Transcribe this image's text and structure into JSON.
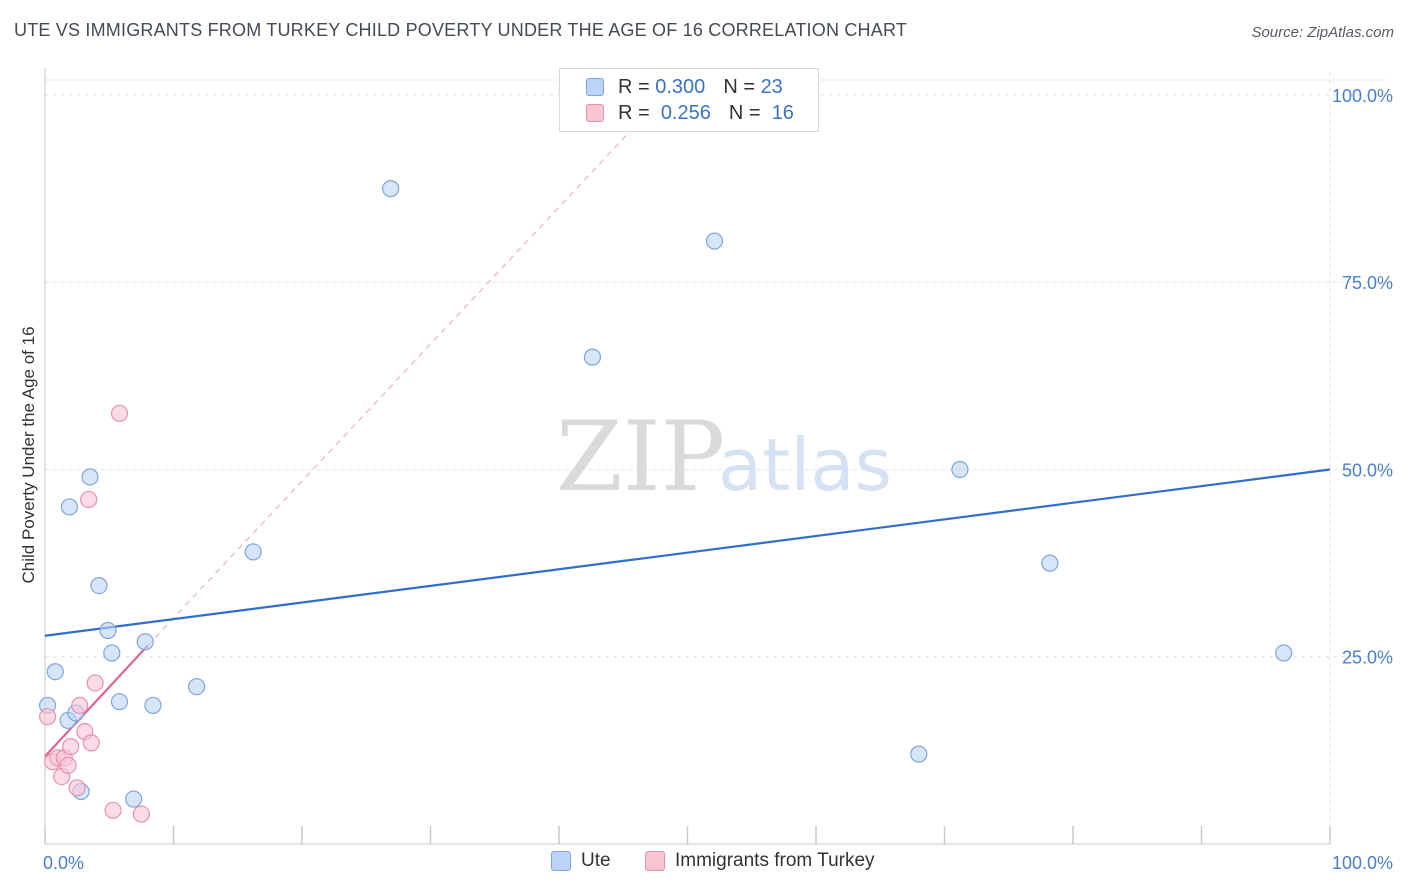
{
  "header": {
    "title": "UTE VS IMMIGRANTS FROM TURKEY CHILD POVERTY UNDER THE AGE OF 16 CORRELATION CHART",
    "source": "Source: ZipAtlas.com"
  },
  "legend": {
    "r_label": "R =",
    "n_label": "N =",
    "series": [
      {
        "name": "Ute",
        "r": "0.300",
        "n": "23",
        "color": "#bcd4f5",
        "edge": "#7ea6de",
        "line": "#2f6fcb"
      },
      {
        "name": "Immigrants from Turkey",
        "r": "0.256",
        "n": "16",
        "color": "#f8c5d3",
        "edge": "#e792ad",
        "line": "#e0639a"
      }
    ]
  },
  "watermark": {
    "zip": "ZIP",
    "atlas": "atlas"
  },
  "chart_data": {
    "type": "scatter",
    "title": "UTE VS IMMIGRANTS FROM TURKEY CHILD POVERTY UNDER THE AGE OF 16 CORRELATION CHART",
    "xlabel": "",
    "ylabel": "Child Poverty Under the Age of 16",
    "xlim": [
      0,
      100
    ],
    "ylim": [
      0,
      102
    ],
    "x_tick_labels": [
      "0.0%",
      "100.0%"
    ],
    "y_ticks": [
      25,
      50,
      75,
      100
    ],
    "y_tick_labels": [
      "25.0%",
      "50.0%",
      "75.0%",
      "100.0%"
    ],
    "grid": true,
    "series": [
      {
        "name": "Ute",
        "points": [
          [
            0.2,
            18.5
          ],
          [
            0.8,
            23
          ],
          [
            1.8,
            16.5
          ],
          [
            1.9,
            45
          ],
          [
            2.4,
            17.5
          ],
          [
            2.8,
            7
          ],
          [
            3.5,
            49
          ],
          [
            4.2,
            34.5
          ],
          [
            4.9,
            28.5
          ],
          [
            5.2,
            25.5
          ],
          [
            5.8,
            19
          ],
          [
            6.9,
            6
          ],
          [
            7.8,
            27
          ],
          [
            8.4,
            18.5
          ],
          [
            11.8,
            21
          ],
          [
            16.2,
            39
          ],
          [
            26.9,
            87.5
          ],
          [
            42.6,
            65
          ],
          [
            52.1,
            80.5
          ],
          [
            68,
            12
          ],
          [
            71.2,
            50
          ],
          [
            78.2,
            37.5
          ],
          [
            96.4,
            25.5
          ]
        ],
        "trend": {
          "x": [
            0,
            100
          ],
          "y": [
            27.8,
            50
          ]
        }
      },
      {
        "name": "Immigrants from Turkey",
        "points": [
          [
            0.2,
            17
          ],
          [
            0.6,
            11
          ],
          [
            1,
            11.5
          ],
          [
            1.3,
            9
          ],
          [
            1.5,
            11.5
          ],
          [
            1.8,
            10.5
          ],
          [
            2,
            13
          ],
          [
            2.5,
            7.5
          ],
          [
            2.7,
            18.5
          ],
          [
            3.1,
            15
          ],
          [
            3.4,
            46
          ],
          [
            3.6,
            13.5
          ],
          [
            3.9,
            21.5
          ],
          [
            5.3,
            4.5
          ],
          [
            5.8,
            57.5
          ],
          [
            7.5,
            4
          ]
        ],
        "trend": {
          "x": [
            0,
            8
          ],
          "y": [
            11.7,
            26.5
          ]
        },
        "trend_extension": {
          "x": [
            8,
            46
          ],
          "y": [
            26.5,
            96
          ]
        }
      }
    ]
  }
}
